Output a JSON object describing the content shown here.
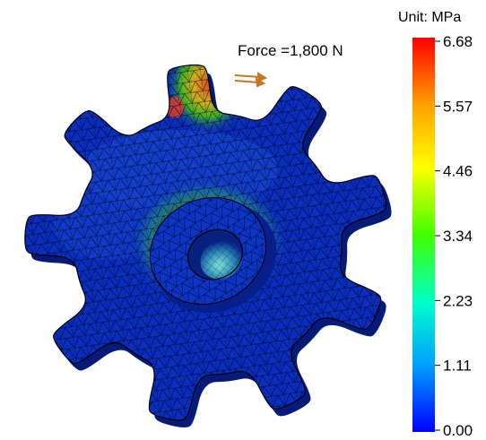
{
  "annotation": {
    "force_label": "Force =1,800 N"
  },
  "colorbar": {
    "unit_label": "Unit: MPa",
    "ticks": [
      "6.68",
      "5.57",
      "4.46",
      "3.34",
      "2.23",
      "1.11",
      "0.00"
    ],
    "gradient": [
      "#ff0000",
      "#ffa000",
      "#ffff00",
      "#40ff00",
      "#00ffc8",
      "#00a0ff",
      "#0000ff"
    ]
  },
  "colors": {
    "gear_body": "#0a2fc4",
    "gear_dark": "#061a7a",
    "mesh": "#000000",
    "force_arrow": "#c8761e",
    "high_stress": "#ff2a00"
  }
}
